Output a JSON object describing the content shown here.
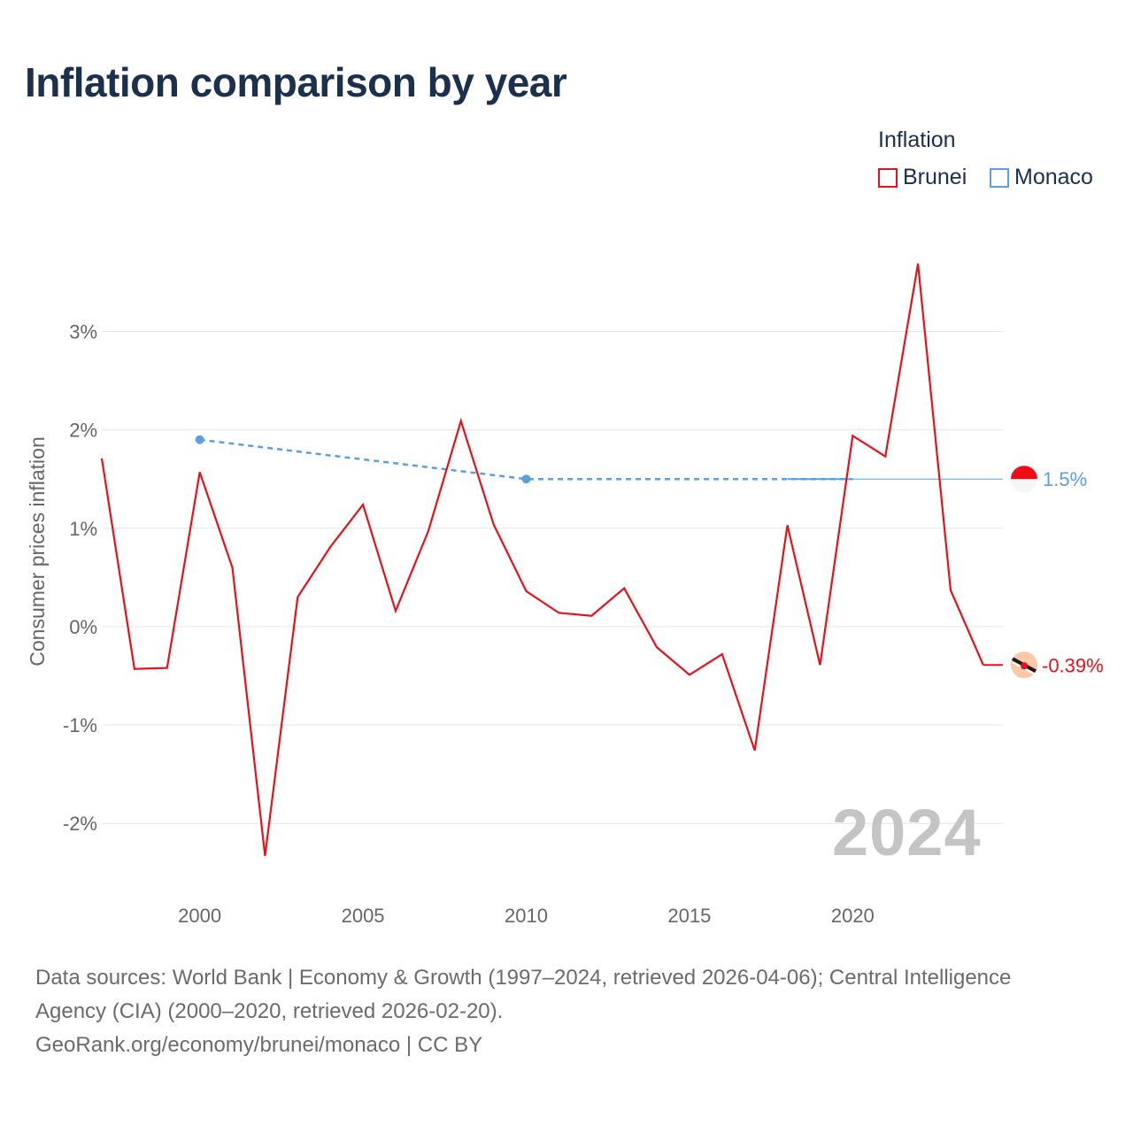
{
  "title": "Inflation comparison by year",
  "legend": {
    "title": "Inflation",
    "items": [
      {
        "label": "Brunei",
        "color": "#e8101a"
      },
      {
        "label": "Monaco",
        "color": "#5ba0e0"
      }
    ]
  },
  "watermark_year": "2024",
  "footer": {
    "line1": "Data sources: World Bank | Economy & Growth (1997–2024, retrieved 2026-04-06); Central Intelligence",
    "line2": "Agency (CIA) (2000–2020, retrieved 2026-02-20).",
    "line3": "GeoRank.org/economy/brunei/monaco | CC BY"
  },
  "chart_data": {
    "type": "line",
    "title": "Inflation comparison by year",
    "xlabel": "",
    "ylabel": "Consumer prices inflation",
    "xlim": [
      1997,
      2024.6
    ],
    "ylim": [
      -2.7,
      4.3
    ],
    "x_ticks": [
      2000,
      2005,
      2010,
      2015,
      2020
    ],
    "x_tick_labels": [
      "2000",
      "2005",
      "2010",
      "2015",
      "2020"
    ],
    "y_ticks": [
      -2,
      -1,
      0,
      1,
      2,
      3
    ],
    "y_tick_labels": [
      "-2%",
      "-1%",
      "0%",
      "1%",
      "2%",
      "3%"
    ],
    "grid": true,
    "legend_position": "top-right",
    "series": [
      {
        "name": "Brunei",
        "color": "#e8101a",
        "style": "solid",
        "x": [
          1997,
          1998,
          1999,
          2000,
          2001,
          2002,
          2003,
          2004,
          2005,
          2006,
          2007,
          2008,
          2009,
          2010,
          2011,
          2012,
          2013,
          2014,
          2015,
          2016,
          2017,
          2018,
          2019,
          2020,
          2021,
          2022,
          2023,
          2024
        ],
        "values": [
          1.71,
          -0.43,
          -0.42,
          1.57,
          0.6,
          -2.33,
          0.3,
          0.81,
          1.24,
          0.16,
          0.97,
          2.09,
          1.04,
          0.36,
          0.14,
          0.11,
          0.39,
          -0.21,
          -0.49,
          -0.28,
          -1.26,
          1.03,
          -0.39,
          1.94,
          1.73,
          3.69,
          0.37,
          -0.39
        ],
        "end_label": "-0.39%"
      },
      {
        "name": "Monaco",
        "color": "#5ba0e0",
        "style": "dashed",
        "x": [
          2000,
          2010,
          2020
        ],
        "values": [
          1.9,
          1.5,
          1.5
        ],
        "markers_at": [
          2000,
          2010
        ],
        "end_label": "1.5%"
      }
    ]
  }
}
